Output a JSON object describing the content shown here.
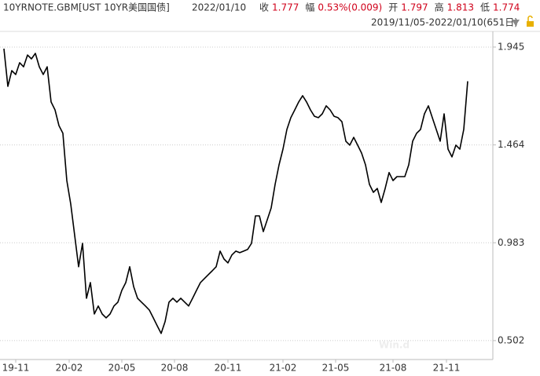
{
  "chart_data": {
    "type": "line",
    "title": "10YRNOTE.GBM[UST 10YR美国国债]",
    "date": "2022/01/10",
    "quote": [
      {
        "label": "收",
        "value": "1.777"
      },
      {
        "label": "幅",
        "value": "0.53%(0.009)"
      },
      {
        "label": "开",
        "value": "1.797"
      },
      {
        "label": "高",
        "value": "1.813"
      },
      {
        "label": "低",
        "value": "1.774"
      }
    ],
    "range_label": "2019/11/05-2022/01/10(651日)",
    "watermark": "Win.d",
    "color": "#000000",
    "grid": true,
    "values": [
      1.937,
      1.752,
      1.829,
      1.81,
      1.868,
      1.848,
      1.906,
      1.887,
      1.914,
      1.848,
      1.81,
      1.848,
      1.675,
      1.636,
      1.559,
      1.521,
      1.289,
      1.173,
      1.019,
      0.865,
      0.98,
      0.71,
      0.787,
      0.633,
      0.672,
      0.633,
      0.614,
      0.633,
      0.672,
      0.691,
      0.749,
      0.787,
      0.865,
      0.768,
      0.71,
      0.691,
      0.672,
      0.652,
      0.614,
      0.575,
      0.537,
      0.595,
      0.691,
      0.71,
      0.691,
      0.71,
      0.691,
      0.672,
      0.71,
      0.749,
      0.787,
      0.807,
      0.826,
      0.845,
      0.865,
      0.942,
      0.903,
      0.884,
      0.923,
      0.942,
      0.934,
      0.942,
      0.95,
      0.98,
      1.115,
      1.115,
      1.038,
      1.096,
      1.154,
      1.27,
      1.366,
      1.443,
      1.54,
      1.598,
      1.636,
      1.675,
      1.706,
      1.675,
      1.636,
      1.605,
      1.598,
      1.617,
      1.656,
      1.636,
      1.605,
      1.598,
      1.578,
      1.482,
      1.463,
      1.501,
      1.463,
      1.424,
      1.366,
      1.27,
      1.231,
      1.25,
      1.181,
      1.25,
      1.328,
      1.289,
      1.308,
      1.308,
      1.308,
      1.366,
      1.482,
      1.521,
      1.54,
      1.617,
      1.656,
      1.598,
      1.54,
      1.482,
      1.617,
      1.443,
      1.405,
      1.463,
      1.443,
      1.54,
      1.777
    ],
    "xlim": [
      -0.6,
      124
    ],
    "xticks": [
      {
        "value": 3,
        "label": "19-11"
      },
      {
        "value": 16.6,
        "label": "20-02"
      },
      {
        "value": 30,
        "label": "20-05"
      },
      {
        "value": 43.4,
        "label": "20-08"
      },
      {
        "value": 57,
        "label": "20-11"
      },
      {
        "value": 71,
        "label": "21-02"
      },
      {
        "value": 84.4,
        "label": "21-05"
      },
      {
        "value": 99,
        "label": "21-08"
      },
      {
        "value": 112.6,
        "label": "21-11"
      }
    ],
    "ylim": [
      0.409,
      2.022
    ],
    "yticks": [
      0.502,
      0.983,
      1.464,
      1.945
    ]
  }
}
